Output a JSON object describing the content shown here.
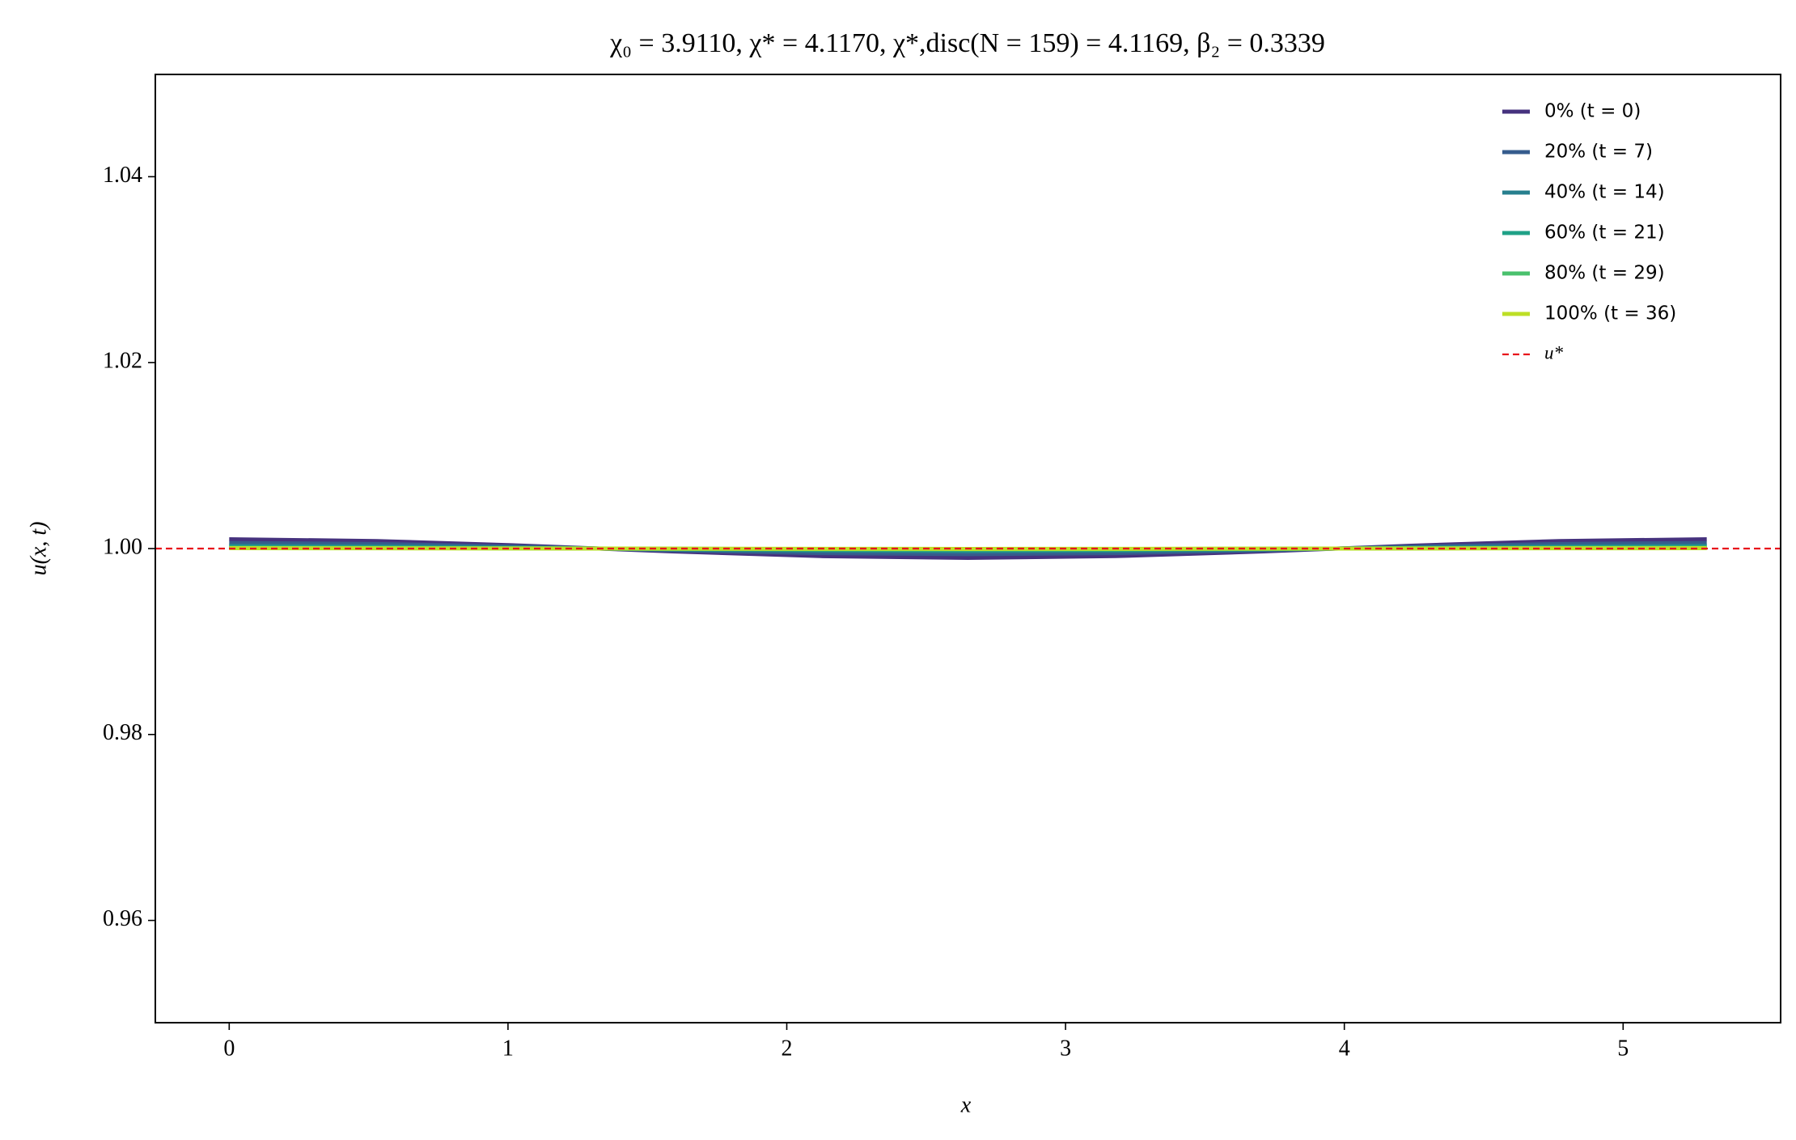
{
  "chart_data": {
    "type": "line",
    "title": "χ₀ = 3.9110,  χ* = 4.1170,  χ*,disc(N = 159) = 4.1169,  β₂ = 0.3339",
    "x_label": "x",
    "y_label": "u(x, t)",
    "x": [
      0,
      0.53,
      1.06,
      1.59,
      2.12,
      2.65,
      3.18,
      3.71,
      4.24,
      4.77,
      5.3
    ],
    "series": [
      {
        "name": "0% (t = 0)",
        "color": "#46327e",
        "values": [
          1.001,
          1.00081,
          1.00031,
          0.99969,
          0.99919,
          0.999,
          0.99919,
          0.99969,
          1.00031,
          1.00081,
          1.001
        ]
      },
      {
        "name": "20% (t = 7)",
        "color": "#365c8d",
        "values": [
          1.0006,
          1.00049,
          1.00019,
          0.99981,
          0.99951,
          0.9994,
          0.99951,
          0.99981,
          1.00019,
          1.00049,
          1.0006
        ]
      },
      {
        "name": "40% (t = 14)",
        "color": "#277f8e",
        "values": [
          1.0003,
          1.00024,
          1.00009,
          0.99991,
          0.99976,
          0.9997,
          0.99976,
          0.99991,
          1.00009,
          1.00024,
          1.0003
        ]
      },
      {
        "name": "60% (t = 21)",
        "color": "#1fa187",
        "values": [
          1.00015,
          1.00012,
          1.00005,
          0.99995,
          0.99988,
          0.99985,
          0.99988,
          0.99995,
          1.00005,
          1.00012,
          1.00015
        ]
      },
      {
        "name": "80% (t = 29)",
        "color": "#4ac16d",
        "values": [
          1.00008,
          1.00006,
          1.00002,
          0.99998,
          0.99994,
          0.99992,
          0.99994,
          0.99998,
          1.00002,
          1.00006,
          1.00008
        ]
      },
      {
        "name": "100% (t = 36)",
        "color": "#bddf26",
        "values": [
          1.00004,
          1.00003,
          1.00001,
          0.99999,
          0.99997,
          0.99996,
          0.99997,
          0.99999,
          1.00001,
          1.00003,
          1.00004
        ]
      }
    ],
    "reference_line": {
      "name": "u*",
      "value": 1,
      "color": "#e8141c"
    },
    "xlim": [
      -0.265,
      5.565
    ],
    "ylim": [
      0.949,
      1.051
    ],
    "xticks": [
      0,
      1,
      2,
      3,
      4,
      5
    ],
    "yticks": [
      0.96,
      0.98,
      {
        "value": 1,
        "label": "1.00"
      },
      1.02,
      1.04
    ],
    "legend": "upper right"
  }
}
